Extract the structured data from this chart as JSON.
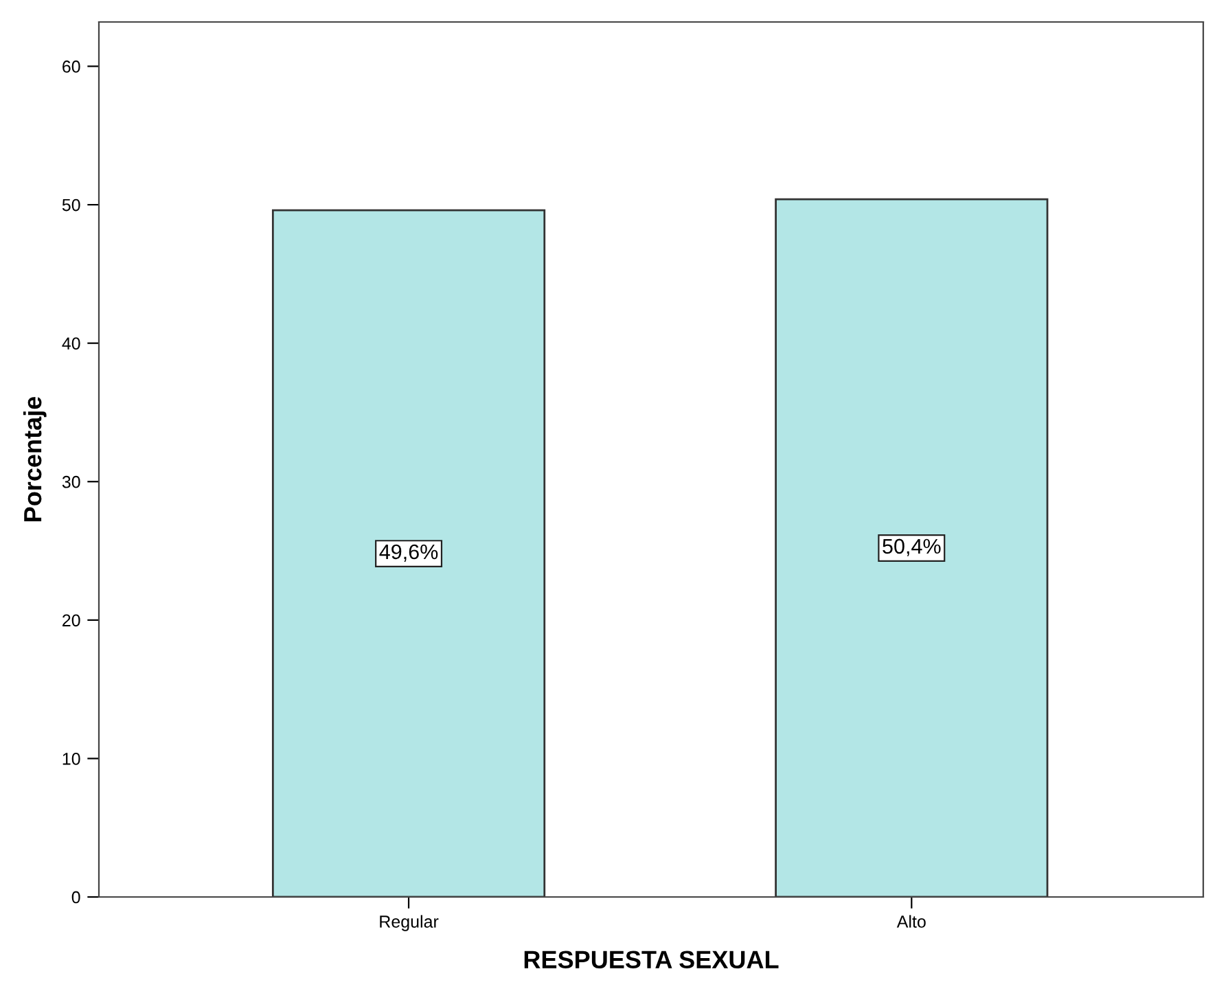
{
  "chart_data": {
    "type": "bar",
    "xlabel": "RESPUESTA SEXUAL",
    "ylabel": "Porcentaje",
    "categories": [
      "Regular",
      "Alto"
    ],
    "values": [
      49.6,
      50.4
    ],
    "value_labels": [
      "49,6%",
      "50,4%"
    ],
    "color": "#b3e6e6",
    "ylim": [
      0,
      63.2
    ],
    "yticks": [
      0,
      10,
      20,
      30,
      40,
      50,
      60
    ],
    "grid": false,
    "legend": false
  }
}
